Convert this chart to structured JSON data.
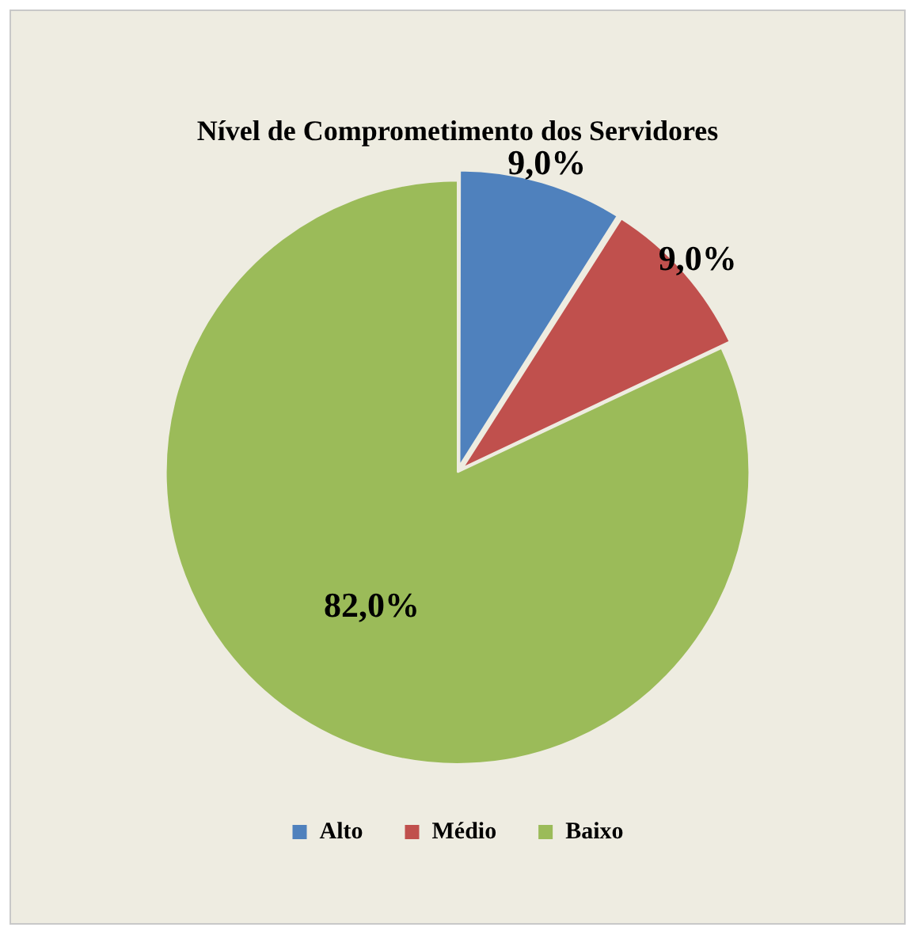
{
  "chart_data": {
    "type": "pie",
    "title": "Nível de Comprometimento dos Servidores",
    "categories": [
      "Alto",
      "Médio",
      "Baixo"
    ],
    "values": [
      9,
      9,
      82
    ],
    "colors": [
      "#4f81bd",
      "#c0504d",
      "#9bbb59"
    ],
    "value_labels": [
      "9,0%",
      "9,0%",
      "82,0%"
    ],
    "legend": "bottom"
  }
}
